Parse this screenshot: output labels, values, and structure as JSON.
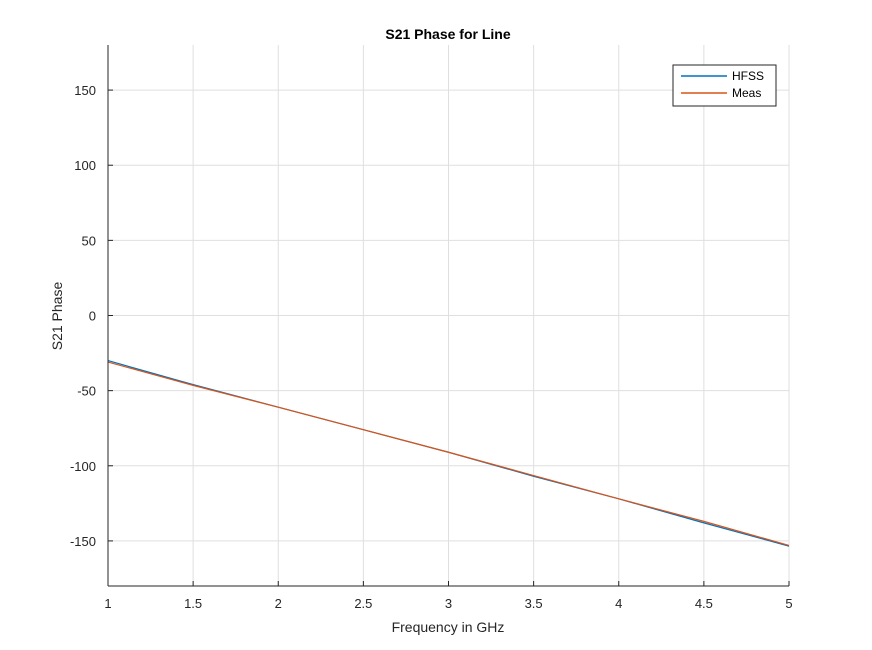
{
  "chart_data": {
    "type": "line",
    "title": "S21 Phase for Line",
    "xlabel": "Frequency in GHz",
    "ylabel": "S21 Phase",
    "xlim": [
      1,
      5
    ],
    "ylim": [
      -180,
      180
    ],
    "xticks": [
      1,
      1.5,
      2,
      2.5,
      3,
      3.5,
      4,
      4.5,
      5
    ],
    "xtick_labels": [
      "1",
      "1.5",
      "2",
      "2.5",
      "3",
      "3.5",
      "4",
      "4.5",
      "5"
    ],
    "yticks": [
      -150,
      -100,
      -50,
      0,
      50,
      100,
      150
    ],
    "ytick_labels": [
      "-150",
      "-100",
      "-50",
      "0",
      "50",
      "100",
      "150"
    ],
    "grid": true,
    "legend_position": "top-right",
    "series": [
      {
        "name": "HFSS",
        "color": "#0072bd",
        "x": [
          1,
          1.5,
          2,
          2.5,
          3,
          3.5,
          4,
          4.5,
          5
        ],
        "y": [
          -30,
          -46,
          -61,
          -76,
          -91,
          -107,
          -122,
          -138,
          -153.5
        ]
      },
      {
        "name": "Meas",
        "color": "#d95319",
        "x": [
          1,
          1.5,
          2,
          2.5,
          3,
          3.5,
          4,
          4.5,
          5
        ],
        "y": [
          -31,
          -46.5,
          -61,
          -76,
          -91,
          -106.5,
          -122,
          -137,
          -153
        ]
      }
    ]
  }
}
